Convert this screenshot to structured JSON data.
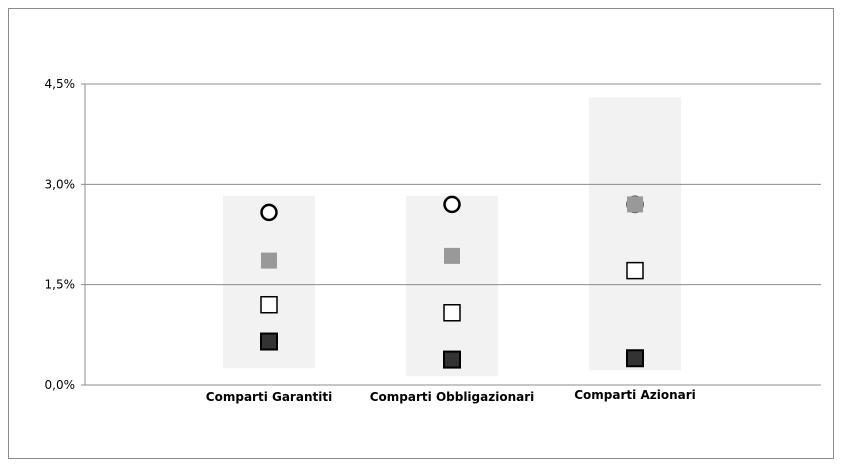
{
  "chart_data": {
    "type": "scatter",
    "categories": [
      "Comparti Garantiti",
      "Comparti Obbligazionari",
      "Comparti Azionari"
    ],
    "yticks": [
      "0,0%",
      "1,5%",
      "3,0%",
      "4,5%"
    ],
    "ylim": [
      0,
      4.5
    ],
    "grid": true,
    "range_bands": [
      {
        "category": "Comparti Garantiti",
        "low": 0.25,
        "high": 2.83
      },
      {
        "category": "Comparti Obbligazionari",
        "low": 0.13,
        "high": 2.83
      },
      {
        "category": "Comparti Azionari",
        "low": 0.22,
        "high": 4.3
      }
    ],
    "series": [
      {
        "marker": "circle-open",
        "color": "#000000",
        "values": [
          2.58,
          2.7,
          2.7
        ]
      },
      {
        "marker": "circle-filled-gray",
        "color": "#999999",
        "values": [
          null,
          null,
          2.7
        ]
      },
      {
        "marker": "square-gray",
        "color": "#999999",
        "values": [
          1.86,
          1.93,
          2.7
        ]
      },
      {
        "marker": "square-open",
        "color": "#000000",
        "values": [
          1.2,
          1.08,
          1.71
        ]
      },
      {
        "marker": "square-dark",
        "color": "#333333",
        "values": [
          0.65,
          0.38,
          0.4
        ]
      }
    ]
  }
}
